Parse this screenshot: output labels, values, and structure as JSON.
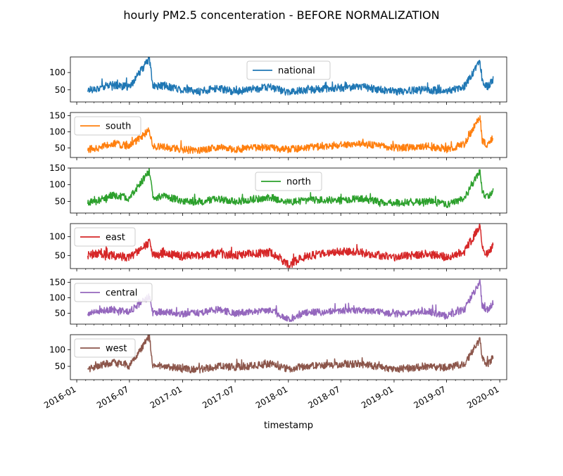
{
  "chart_data": {
    "type": "line",
    "title": "hourly PM2.5 concenteration - BEFORE NORMALIZATION",
    "xlabel": "timestamp",
    "x_tick_labels": [
      "2016-01",
      "2016-07",
      "2017-01",
      "2017-07",
      "2018-01",
      "2018-07",
      "2019-01",
      "2019-07",
      "2020-01"
    ],
    "x_tick_dates": [
      "2016-01-01",
      "2016-07-01",
      "2017-01-01",
      "2017-07-01",
      "2018-01-01",
      "2018-07-01",
      "2019-01-01",
      "2019-07-01",
      "2020-01-01"
    ],
    "xlim": [
      "2015-12-10",
      "2020-01-25"
    ],
    "grid": false,
    "panels": [
      {
        "name": "national",
        "color": "#1f77b4",
        "legend_loc": "upper center",
        "ylim": [
          15,
          145
        ],
        "yticks": [
          50,
          100
        ],
        "x": [
          "2016-02-08",
          "2016-03-15",
          "2016-05-01",
          "2016-07-01",
          "2016-09-08",
          "2016-09-20",
          "2016-11-01",
          "2017-01-01",
          "2017-03-01",
          "2017-05-01",
          "2017-07-01",
          "2017-09-01",
          "2017-11-01",
          "2018-01-01",
          "2018-03-01",
          "2018-05-01",
          "2018-07-01",
          "2018-09-01",
          "2018-11-01",
          "2019-01-01",
          "2019-03-01",
          "2019-05-01",
          "2019-07-01",
          "2019-09-01",
          "2019-10-25",
          "2019-11-01",
          "2019-11-20",
          "2019-12-10"
        ],
        "y": [
          50,
          55,
          65,
          58,
          140,
          60,
          62,
          50,
          45,
          55,
          45,
          52,
          58,
          42,
          50,
          52,
          55,
          60,
          52,
          45,
          48,
          50,
          45,
          60,
          132,
          75,
          60,
          80
        ]
      },
      {
        "name": "south",
        "color": "#ff7f0e",
        "legend_loc": "upper left",
        "ylim": [
          20,
          160
        ],
        "yticks": [
          50,
          100,
          150
        ],
        "x": [
          "2016-02-08",
          "2016-03-15",
          "2016-05-01",
          "2016-07-01",
          "2016-09-08",
          "2016-09-20",
          "2016-11-01",
          "2017-01-01",
          "2017-03-01",
          "2017-05-01",
          "2017-07-01",
          "2017-09-01",
          "2017-11-01",
          "2018-01-01",
          "2018-03-01",
          "2018-05-01",
          "2018-07-01",
          "2018-09-01",
          "2018-11-01",
          "2019-01-01",
          "2019-03-01",
          "2019-05-01",
          "2019-07-01",
          "2019-09-01",
          "2019-10-25",
          "2019-11-01",
          "2019-11-20",
          "2019-12-10"
        ],
        "y": [
          45,
          50,
          65,
          55,
          105,
          55,
          52,
          45,
          42,
          52,
          45,
          50,
          52,
          45,
          50,
          55,
          60,
          62,
          58,
          50,
          52,
          55,
          45,
          62,
          150,
          70,
          60,
          85
        ]
      },
      {
        "name": "north",
        "color": "#2ca02c",
        "legend_loc": "upper center",
        "ylim": [
          15,
          150
        ],
        "yticks": [
          50,
          100,
          150
        ],
        "x": [
          "2016-02-08",
          "2016-03-15",
          "2016-05-01",
          "2016-07-01",
          "2016-09-08",
          "2016-09-20",
          "2016-11-01",
          "2017-01-01",
          "2017-03-01",
          "2017-05-01",
          "2017-07-01",
          "2017-09-01",
          "2017-11-01",
          "2018-01-01",
          "2018-03-01",
          "2018-05-01",
          "2018-07-01",
          "2018-09-01",
          "2018-11-01",
          "2019-01-01",
          "2019-03-01",
          "2019-05-01",
          "2019-07-01",
          "2019-09-01",
          "2019-10-25",
          "2019-11-01",
          "2019-11-20",
          "2019-12-10"
        ],
        "y": [
          45,
          52,
          68,
          60,
          140,
          60,
          65,
          52,
          48,
          58,
          50,
          55,
          62,
          48,
          52,
          55,
          52,
          58,
          50,
          45,
          48,
          50,
          40,
          60,
          145,
          75,
          62,
          85
        ]
      },
      {
        "name": "east",
        "color": "#d62728",
        "legend_loc": "upper left",
        "ylim": [
          15,
          135
        ],
        "yticks": [
          50,
          100
        ],
        "x": [
          "2016-02-08",
          "2016-03-15",
          "2016-05-01",
          "2016-07-01",
          "2016-09-08",
          "2016-09-20",
          "2016-11-01",
          "2017-01-01",
          "2017-03-01",
          "2017-05-01",
          "2017-07-01",
          "2017-09-01",
          "2017-11-01",
          "2018-01-01",
          "2018-03-01",
          "2018-05-01",
          "2018-07-01",
          "2018-09-01",
          "2018-11-01",
          "2019-01-01",
          "2019-03-01",
          "2019-05-01",
          "2019-07-01",
          "2019-09-01",
          "2019-10-25",
          "2019-11-01",
          "2019-11-20",
          "2019-12-10"
        ],
        "y": [
          50,
          55,
          50,
          45,
          85,
          50,
          55,
          48,
          50,
          55,
          50,
          55,
          58,
          25,
          48,
          55,
          60,
          58,
          52,
          45,
          50,
          55,
          45,
          60,
          130,
          70,
          55,
          75
        ]
      },
      {
        "name": "central",
        "color": "#9467bd",
        "legend_loc": "upper left",
        "ylim": [
          15,
          160
        ],
        "yticks": [
          50,
          100,
          150
        ],
        "x": [
          "2016-02-08",
          "2016-03-15",
          "2016-05-01",
          "2016-07-01",
          "2016-09-08",
          "2016-09-20",
          "2016-11-01",
          "2017-01-01",
          "2017-03-01",
          "2017-05-01",
          "2017-07-01",
          "2017-09-01",
          "2017-11-01",
          "2018-01-01",
          "2018-03-01",
          "2018-05-01",
          "2018-07-01",
          "2018-09-01",
          "2018-11-01",
          "2019-01-01",
          "2019-03-01",
          "2019-05-01",
          "2019-07-01",
          "2019-09-01",
          "2019-10-25",
          "2019-11-01",
          "2019-11-20",
          "2019-12-10"
        ],
        "y": [
          48,
          55,
          62,
          55,
          105,
          52,
          55,
          48,
          50,
          62,
          50,
          55,
          60,
          30,
          52,
          55,
          58,
          60,
          55,
          48,
          52,
          55,
          42,
          62,
          152,
          75,
          60,
          85
        ]
      },
      {
        "name": "west",
        "color": "#8c564b",
        "legend_loc": "upper left",
        "ylim": [
          10,
          145
        ],
        "yticks": [
          50,
          100
        ],
        "x": [
          "2016-02-08",
          "2016-03-15",
          "2016-05-01",
          "2016-07-01",
          "2016-09-08",
          "2016-09-20",
          "2016-11-01",
          "2017-01-01",
          "2017-03-01",
          "2017-05-01",
          "2017-07-01",
          "2017-09-01",
          "2017-11-01",
          "2018-01-01",
          "2018-03-01",
          "2018-05-01",
          "2018-07-01",
          "2018-09-01",
          "2018-11-01",
          "2019-01-01",
          "2019-03-01",
          "2019-05-01",
          "2019-07-01",
          "2019-09-01",
          "2019-10-25",
          "2019-11-01",
          "2019-11-20",
          "2019-12-10"
        ],
        "y": [
          42,
          50,
          62,
          52,
          140,
          50,
          52,
          42,
          40,
          50,
          48,
          52,
          58,
          42,
          50,
          52,
          55,
          58,
          50,
          42,
          45,
          50,
          45,
          58,
          130,
          72,
          58,
          78
        ]
      }
    ]
  }
}
